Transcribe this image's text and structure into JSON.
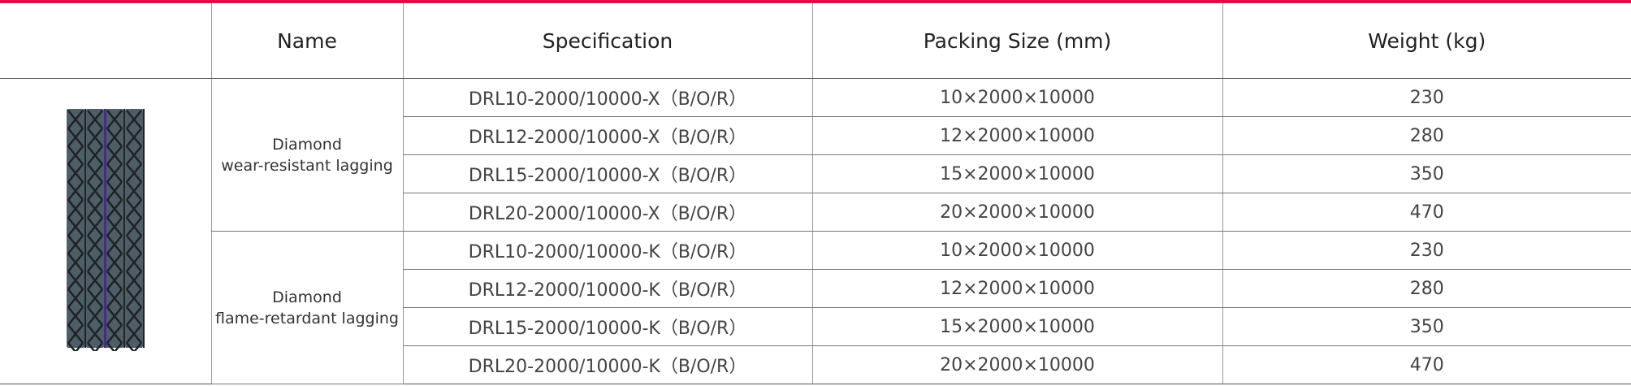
{
  "accent_color": "#e60a45",
  "header": {
    "image_col": "",
    "name": "Name",
    "specification": "Specification",
    "packing_size": "Packing Size (mm)",
    "weight": "Weight (kg)"
  },
  "groups": [
    {
      "name_line1": "Diamond",
      "name_line2": "wear-resistant lagging",
      "rows": [
        {
          "spec": "DRL10-2000/10000-X（B/O/R）",
          "size": "10×2000×10000",
          "weight": "230"
        },
        {
          "spec": "DRL12-2000/10000-X（B/O/R）",
          "size": "12×2000×10000",
          "weight": "280"
        },
        {
          "spec": "DRL15-2000/10000-X（B/O/R）",
          "size": "15×2000×10000",
          "weight": "350"
        },
        {
          "spec": "DRL20-2000/10000-X（B/O/R）",
          "size": "20×2000×10000",
          "weight": "470"
        }
      ]
    },
    {
      "name_line1": "Diamond",
      "name_line2": "flame-retardant lagging",
      "rows": [
        {
          "spec": "DRL10-2000/10000-K（B/O/R）",
          "size": "10×2000×10000",
          "weight": "230"
        },
        {
          "spec": "DRL12-2000/10000-K（B/O/R）",
          "size": "12×2000×10000",
          "weight": "280"
        },
        {
          "spec": "DRL15-2000/10000-K（B/O/R）",
          "size": "15×2000×10000",
          "weight": "350"
        },
        {
          "spec": "DRL20-2000/10000-K（B/O/R）",
          "size": "20×2000×10000",
          "weight": "470"
        }
      ]
    }
  ]
}
